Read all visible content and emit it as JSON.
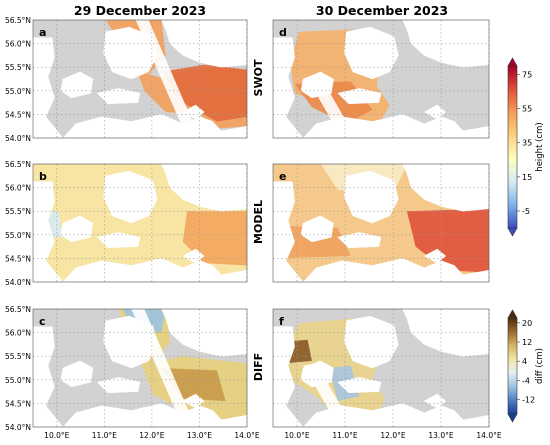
{
  "chart_data": {
    "type": "heatmap",
    "column_titles": [
      "29 December 2023",
      "30 December 2023"
    ],
    "row_labels": [
      "SWOT",
      "MODEL",
      "DIFF"
    ],
    "panel_letters": [
      "a",
      "b",
      "c",
      "d",
      "e",
      "f"
    ],
    "lat_ticks": [
      "54.0°N",
      "54.5°N",
      "55.0°N",
      "55.5°N",
      "56.0°N",
      "56.5°N"
    ],
    "lon_ticks": [
      "10.0°E",
      "11.0°E",
      "12.0°E",
      "13.0°E",
      "14.0°E"
    ],
    "lon_range": [
      9.5,
      14.0
    ],
    "lat_range": [
      54.0,
      56.5
    ],
    "colorbars": [
      {
        "label": "height (cm)",
        "ticks": [
          "75",
          "55",
          "35",
          "15",
          "-5"
        ],
        "range": [
          -15,
          80
        ],
        "colors": [
          "#3b4cc0",
          "#7fb2ea",
          "#d7ecf4",
          "#ffffbf",
          "#fdd17b",
          "#f59b55",
          "#e0503a",
          "#a50026"
        ]
      },
      {
        "label": "diff (cm)",
        "ticks": [
          "20",
          "12",
          "4",
          "-4",
          "-12"
        ],
        "range": [
          -18,
          22
        ],
        "colors": [
          "#1a3f94",
          "#4f7ec2",
          "#9cc4e0",
          "#e6eff2",
          "#f2e7a6",
          "#d6b45f",
          "#9a6a2a",
          "#4d2a0e"
        ]
      }
    ],
    "panels": [
      {
        "letter": "a",
        "row": "SWOT",
        "date": "29 December 2023",
        "approx_range_cm": [
          35,
          70
        ]
      },
      {
        "letter": "b",
        "row": "MODEL",
        "date": "29 December 2023",
        "approx_range_cm": [
          20,
          65
        ]
      },
      {
        "letter": "c",
        "row": "DIFF",
        "date": "29 December 2023",
        "approx_range_cm": [
          -12,
          14
        ]
      },
      {
        "letter": "d",
        "row": "SWOT",
        "date": "30 December 2023",
        "approx_range_cm": [
          35,
          60
        ]
      },
      {
        "letter": "e",
        "row": "MODEL",
        "date": "30 December 2023",
        "approx_range_cm": [
          25,
          75
        ]
      },
      {
        "letter": "f",
        "row": "DIFF",
        "date": "30 December 2023",
        "approx_range_cm": [
          -12,
          20
        ]
      }
    ]
  }
}
